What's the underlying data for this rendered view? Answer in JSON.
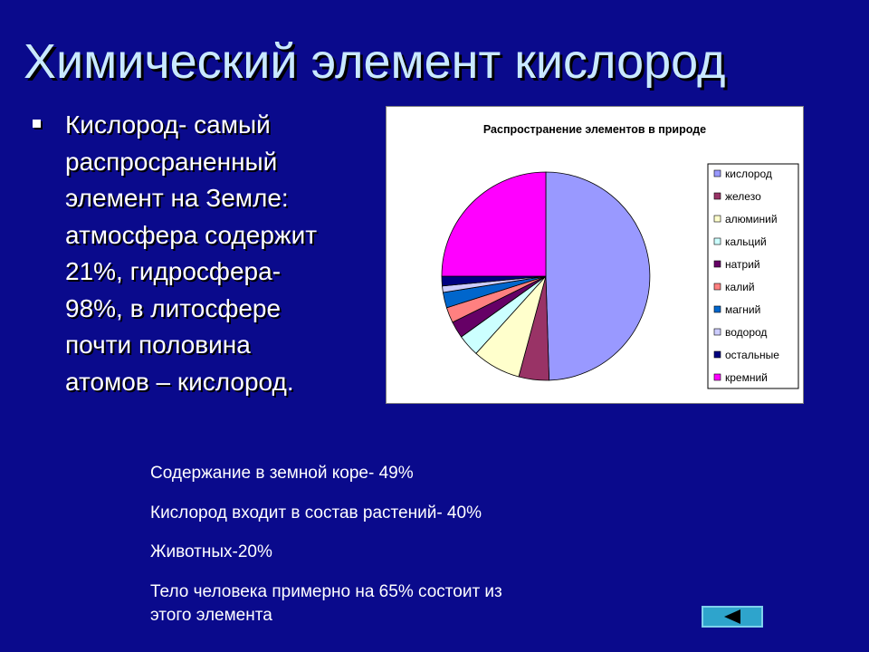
{
  "slide": {
    "title": "Химический элемент кислород",
    "bullet": "Кислород- самый\nраспросраненный\nэлемент на Земле:\nатмосфера содержит\n21%, гидросфера-\n98%, в литосфере\nпочти половина\nатомов – кислород.",
    "facts": [
      "Содержание в земной коре- 49%",
      "Кислород входит в состав растений- 40%",
      "Животных-20%",
      "Тело человека примерно на 65% состоит из\nэтого элемента"
    ],
    "nav": {
      "back_icon": "arrow-left-icon"
    }
  },
  "colors": {
    "background": "#0a0a8c",
    "title": "#c9e9ff",
    "nav_button": "#2ea4cc"
  },
  "chart_data": {
    "type": "pie",
    "title": "Распространение элементов в природе",
    "legend_position": "right",
    "categories": [
      "кислород",
      "железо",
      "алюминий",
      "кальций",
      "натрий",
      "калий",
      "магний",
      "водород",
      "остальные",
      "кремний"
    ],
    "values": [
      49.5,
      4.7,
      7.5,
      3.4,
      2.6,
      2.4,
      2.4,
      1.0,
      1.5,
      25.0
    ],
    "colors": [
      "#9999ff",
      "#993366",
      "#ffffcc",
      "#ccffff",
      "#660066",
      "#ff8080",
      "#0066cc",
      "#ccccff",
      "#000080",
      "#ff00ff"
    ]
  }
}
